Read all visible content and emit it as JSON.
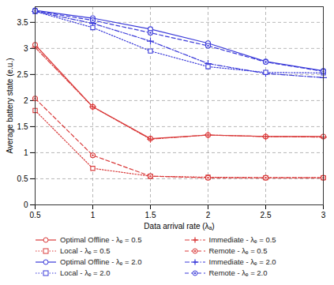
{
  "chart_data": {
    "type": "line",
    "x_label": "Data arrival rate (λₐ)",
    "y_label": "Average battery state (e.u.)",
    "x": [
      0.5,
      1,
      1.5,
      2,
      2.5,
      3
    ],
    "xlim": [
      0.5,
      3
    ],
    "xticks": [
      0.5,
      1,
      1.5,
      2,
      2.5,
      3
    ],
    "ylim": [
      0,
      3.8
    ],
    "yticks": [
      0,
      0.5,
      1,
      1.5,
      2,
      2.5,
      3,
      3.5
    ],
    "grid": true,
    "legend": "bottom",
    "series": [
      {
        "name": "Optimal Offline - λₑ = 0.5",
        "color": "#d93a3a",
        "marker": "circle",
        "line_style": "solid",
        "values": [
          3.07,
          1.88,
          1.27,
          1.34,
          1.31,
          1.31
        ]
      },
      {
        "name": "Immediate - λₑ = 0.5",
        "color": "#d93a3a",
        "marker": "plus",
        "line_style": "dashdot",
        "values": [
          3.02,
          1.88,
          1.26,
          1.34,
          1.31,
          1.3
        ]
      },
      {
        "name": "Local - λₑ = 0.5",
        "color": "#d93a3a",
        "marker": "square",
        "line_style": "dotted",
        "values": [
          1.81,
          0.7,
          0.55,
          0.53,
          0.52,
          0.52
        ]
      },
      {
        "name": "Remote - λₑ = 0.5",
        "color": "#d93a3a",
        "marker": "circle-dot",
        "line_style": "dashed",
        "values": [
          2.04,
          0.95,
          0.55,
          0.52,
          0.52,
          0.52
        ]
      },
      {
        "name": "Optimal Offline - λₑ = 2.0",
        "color": "#3a3ad9",
        "marker": "circle",
        "line_style": "solid",
        "values": [
          3.73,
          3.58,
          3.37,
          3.1,
          2.75,
          2.57
        ]
      },
      {
        "name": "Immediate - λₑ = 2.0",
        "color": "#3a3ad9",
        "marker": "plus",
        "line_style": "dashdot",
        "values": [
          3.71,
          3.48,
          3.14,
          2.71,
          2.52,
          2.44
        ]
      },
      {
        "name": "Local - λₑ = 2.0",
        "color": "#3a3ad9",
        "marker": "square",
        "line_style": "dotted",
        "values": [
          3.71,
          3.4,
          2.95,
          2.65,
          2.54,
          2.53
        ]
      },
      {
        "name": "Remote - λₑ = 2.0",
        "color": "#3a3ad9",
        "marker": "circle-dot",
        "line_style": "dashed",
        "values": [
          3.72,
          3.54,
          3.3,
          3.05,
          2.74,
          2.56
        ]
      }
    ]
  }
}
